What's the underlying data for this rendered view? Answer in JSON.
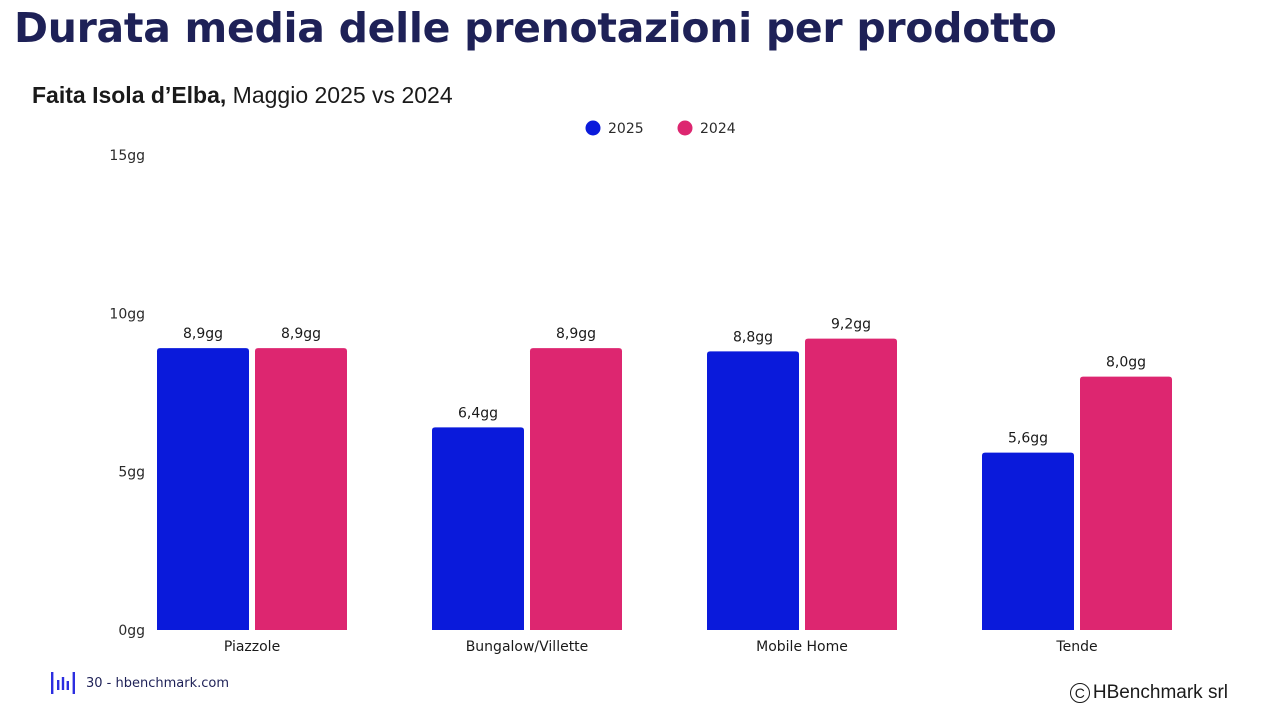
{
  "header": {
    "title": "Durata media delle prenotazioni per prodotto",
    "subtitle_bold": "Faita Isola d’Elba,",
    "subtitle_rest": " Maggio 2025 vs 2024"
  },
  "footer": {
    "page_text": "30 - hbenchmark.com",
    "logo_icon": "hbenchmark-logo-icon",
    "copyright_icon": "copyright-icon",
    "copyright_text": "HBenchmark srl"
  },
  "colors": {
    "series_2025": "#0a1adb",
    "series_2024": "#dd2670",
    "title": "#1e2157"
  },
  "chart_data": {
    "type": "bar",
    "categories": [
      "Piazzole",
      "Bungalow/Villette",
      "Mobile Home",
      "Tende"
    ],
    "series": [
      {
        "name": "2025",
        "values": [
          8.9,
          6.4,
          8.8,
          5.6
        ],
        "labels": [
          "8,9gg",
          "6,4gg",
          "8,8gg",
          "5,6gg"
        ],
        "color": "#0a1adb"
      },
      {
        "name": "2024",
        "values": [
          8.9,
          8.9,
          9.2,
          8.0
        ],
        "labels": [
          "8,9gg",
          "8,9gg",
          "9,2gg",
          "8,0gg"
        ],
        "color": "#dd2670"
      }
    ],
    "ylim": [
      0,
      15
    ],
    "yticks": [
      0,
      5,
      10,
      15
    ],
    "ytick_labels": [
      "0gg",
      "5gg",
      "10gg",
      "15gg"
    ],
    "grid": false,
    "legend_position": "top-center"
  }
}
